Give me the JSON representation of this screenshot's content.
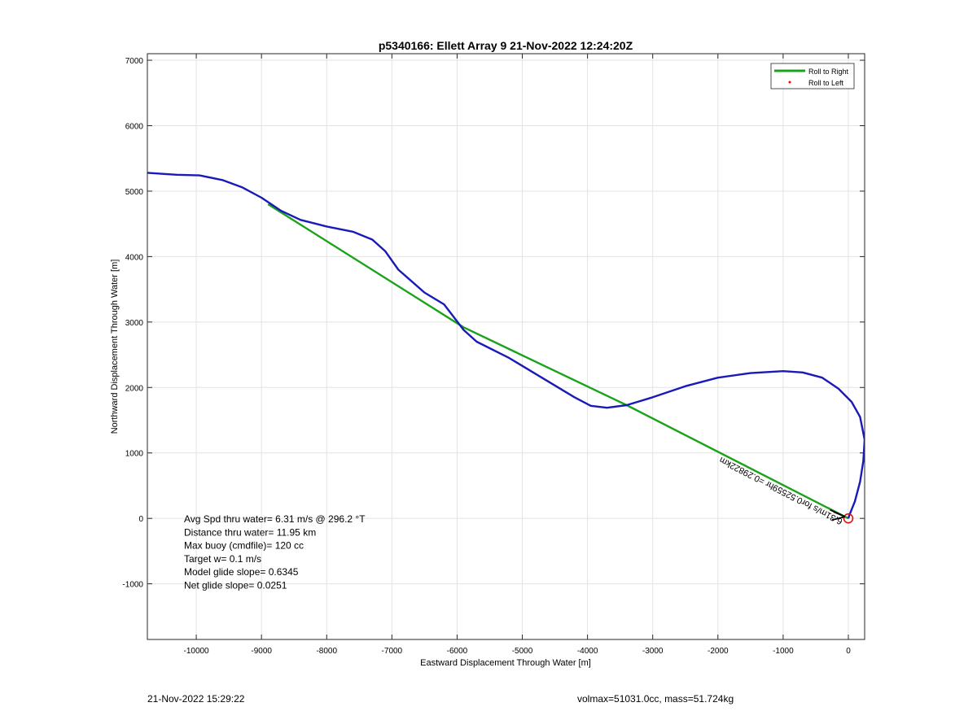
{
  "chart_data": {
    "type": "line",
    "title": "p5340166: Ellett Array 9 21-Nov-2022 12:24:20Z",
    "xlabel": "Eastward Displacement Through Water [m]",
    "ylabel": "Northward Displacement Through Water [m]",
    "xlim": [
      -10750,
      250
    ],
    "ylim": [
      -1850,
      7100
    ],
    "xticks": [
      -10000,
      -9000,
      -8000,
      -7000,
      -6000,
      -5000,
      -4000,
      -3000,
      -2000,
      -1000,
      0
    ],
    "yticks": [
      -1000,
      0,
      1000,
      2000,
      3000,
      4000,
      5000,
      6000,
      7000
    ],
    "grid": true,
    "legend": {
      "position": "top-right",
      "entries": [
        {
          "label": "Roll to Right",
          "color": "#1aa31a",
          "marker": "line"
        },
        {
          "label": "Roll to Left",
          "color": "#ff0000",
          "marker": "dot"
        }
      ]
    },
    "series": [
      {
        "color": "#1aa31a",
        "x": [
          -8900,
          -5900,
          -3400,
          0
        ],
        "y": [
          4800,
          2920,
          1730,
          0
        ]
      },
      {
        "color": "#1a1ab8",
        "x": [
          -10750,
          -10300,
          -9950,
          -9600,
          -9300,
          -9000,
          -8700,
          -8400,
          -8000,
          -7600,
          -7300,
          -7100,
          -6900,
          -6500,
          -6200,
          -6000,
          -5900,
          -5700,
          -5200,
          -4700,
          -4200,
          -3950,
          -3700,
          -3400,
          -3000,
          -2500,
          -2000,
          -1500,
          -1000,
          -700,
          -400,
          -150,
          50,
          180,
          250,
          230,
          180,
          100,
          20,
          0
        ],
        "y": [
          5280,
          5250,
          5240,
          5170,
          5060,
          4900,
          4700,
          4560,
          4460,
          4380,
          4260,
          4080,
          3800,
          3450,
          3270,
          3010,
          2880,
          2700,
          2450,
          2150,
          1850,
          1720,
          1690,
          1730,
          1850,
          2020,
          2150,
          2220,
          2250,
          2230,
          2150,
          1980,
          1780,
          1550,
          1200,
          880,
          560,
          260,
          60,
          0
        ]
      }
    ],
    "annotations": {
      "arrow_label": "6.31m/s for0.52559hr =0.29822km",
      "marker_color": "#e01010",
      "stats": [
        "Avg Spd thru water=  6.31 m/s @ 296.2 °T",
        "Distance thru water= 11.95 km",
        "Max buoy (cmdfile)= 120 cc",
        "Target w= 0.1 m/s",
        "Model glide slope= 0.6345",
        "Net glide slope= 0.0251"
      ]
    }
  },
  "footer": {
    "timestamp": "21-Nov-2022 15:29:22",
    "volmax": "volmax=51031.0cc, mass=51.724kg"
  }
}
